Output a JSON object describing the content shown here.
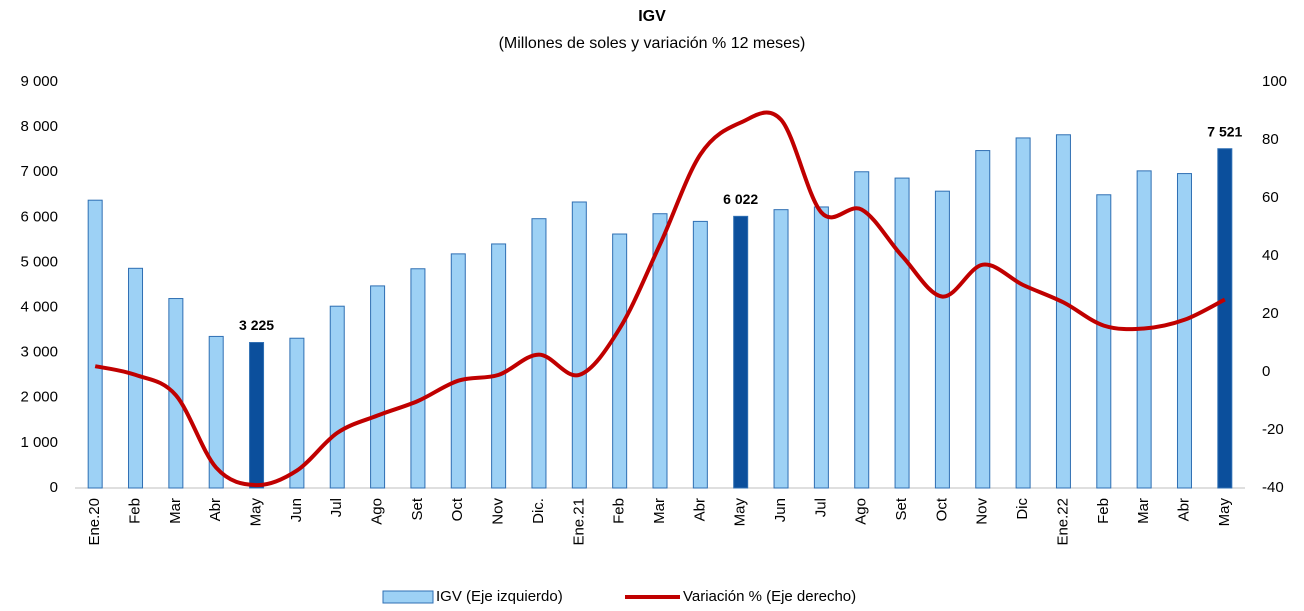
{
  "chart_data": {
    "type": "bar_line",
    "title": "IGV",
    "subtitle": "(Millones de soles y variación % 12 meses)",
    "categories": [
      "Ene.20",
      "Feb",
      "Mar",
      "Abr",
      "May",
      "Jun",
      "Jul",
      "Ago",
      "Set",
      "Oct",
      "Nov",
      "Dic.",
      "Ene.21",
      "Feb",
      "Mar",
      "Abr",
      "May",
      "Jun",
      "Jul",
      "Ago",
      "Set",
      "Oct",
      "Nov",
      "Dic",
      "Ene.22",
      "Feb",
      "Mar",
      "Abr",
      "May"
    ],
    "series": [
      {
        "name": "IGV (Eje izquierdo)",
        "type": "bar",
        "color": "#9dd1f5",
        "edge_color": "#2f6fb3",
        "colors": [
          "#9dd1f5",
          "#9dd1f5",
          "#9dd1f5",
          "#9dd1f5",
          "#0b4f9c",
          "#9dd1f5",
          "#9dd1f5",
          "#9dd1f5",
          "#9dd1f5",
          "#9dd1f5",
          "#9dd1f5",
          "#9dd1f5",
          "#9dd1f5",
          "#9dd1f5",
          "#9dd1f5",
          "#9dd1f5",
          "#0b4f9c",
          "#9dd1f5",
          "#9dd1f5",
          "#9dd1f5",
          "#9dd1f5",
          "#9dd1f5",
          "#9dd1f5",
          "#9dd1f5",
          "#9dd1f5",
          "#9dd1f5",
          "#9dd1f5",
          "#9dd1f5",
          "#0b4f9c"
        ],
        "values": [
          6380,
          4870,
          4200,
          3360,
          3225,
          3320,
          4030,
          4480,
          4860,
          5190,
          5410,
          5970,
          6340,
          5630,
          6080,
          5910,
          6022,
          6170,
          6230,
          7010,
          6870,
          6580,
          7480,
          7760,
          7830,
          6500,
          7030,
          6970,
          7521
        ],
        "value_labels": [
          null,
          null,
          null,
          null,
          "3 225",
          null,
          null,
          null,
          null,
          null,
          null,
          null,
          null,
          null,
          null,
          null,
          "6 022",
          null,
          null,
          null,
          null,
          null,
          null,
          null,
          null,
          null,
          null,
          null,
          "7 521"
        ]
      },
      {
        "name": "Variación % (Eje derecho)",
        "type": "line",
        "axis": "y2",
        "color": "#c00000",
        "values": [
          2,
          -1,
          -8,
          -33,
          -39,
          -34,
          -21,
          -15,
          -10,
          -3,
          -1,
          6,
          -1,
          15,
          44,
          75,
          86,
          87,
          55,
          56,
          40,
          26,
          37,
          30,
          24,
          16,
          15,
          18,
          25
        ]
      }
    ],
    "ylim": [
      0,
      9000
    ],
    "yticks": [
      0,
      {
        "value": 1000,
        "label": "1 000"
      },
      {
        "value": 2000,
        "label": "2 000"
      },
      {
        "value": 3000,
        "label": "3 000"
      },
      {
        "value": 4000,
        "label": "4 000"
      },
      {
        "value": 5000,
        "label": "5 000"
      },
      {
        "value": 6000,
        "label": "6 000"
      },
      {
        "value": 7000,
        "label": "7 000"
      },
      {
        "value": 8000,
        "label": "8 000"
      },
      {
        "value": 9000,
        "label": "9 000"
      }
    ],
    "y2lim": [
      -40,
      100
    ],
    "y2ticks": [
      -40,
      -20,
      0,
      20,
      40,
      60,
      80,
      100
    ],
    "legend": "bottom"
  }
}
